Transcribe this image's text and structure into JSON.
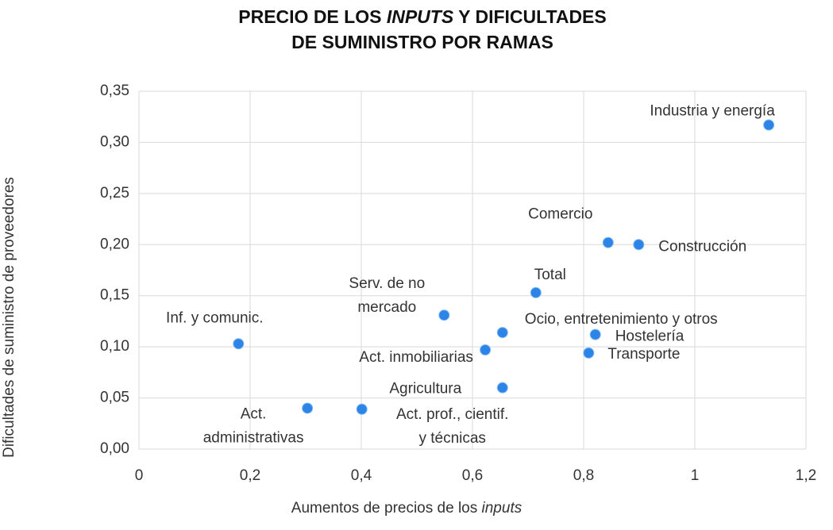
{
  "chart_data": {
    "type": "scatter",
    "title": {
      "line1": [
        "PRECIO DE LOS",
        "INPUTS",
        "Y DIFICULTADES"
      ],
      "line2": "DE SUMINISTRO POR RAMAS"
    },
    "x_label": [
      "Aumentos de precios de los",
      "inputs"
    ],
    "y_label": "Dificultades de suministro de proveedores",
    "color": "#2b84e6",
    "grid": true,
    "xlim": [
      0,
      1.2
    ],
    "xticks": [
      0,
      {
        "value": 0.2,
        "label": "0,2"
      },
      {
        "value": 0.4,
        "label": "0,4"
      },
      {
        "value": 0.6,
        "label": "0,6"
      },
      {
        "value": 0.8,
        "label": "0,8"
      },
      1,
      {
        "value": 1.2,
        "label": "1,2"
      }
    ],
    "ylim": [
      0,
      0.35
    ],
    "yticks": [
      {
        "value": 0,
        "label": "0,00"
      },
      {
        "value": 0.05,
        "label": "0,05"
      },
      {
        "value": 0.1,
        "label": "0,10"
      },
      {
        "value": 0.15,
        "label": "0,15"
      },
      {
        "value": 0.2,
        "label": "0,20"
      },
      {
        "value": 0.25,
        "label": "0,25"
      },
      {
        "value": 0.3,
        "label": "0,30"
      },
      {
        "value": 0.35,
        "label": "0,35"
      }
    ],
    "labels": [
      [
        "Industria y energía"
      ],
      [
        "Comercio"
      ],
      [
        "Construcción"
      ],
      [
        "Total"
      ],
      [
        "Serv. de no",
        "mercado"
      ],
      [
        "Ocio, entretenimiento y otros"
      ],
      [
        "Hostelería"
      ],
      [
        "Transporte"
      ],
      [
        "Act. inmobiliarias"
      ],
      [
        "Inf. y comunic."
      ],
      [
        "Agricultura"
      ],
      [
        "Act.",
        "administrativas"
      ],
      [
        "Act. prof., cientif.",
        "y técnicas"
      ]
    ],
    "x": [
      1.133,
      0.844,
      0.899,
      0.714,
      0.549,
      0.654,
      0.821,
      0.809,
      0.623,
      0.179,
      0.654,
      0.303,
      0.401
    ],
    "y": [
      0.317,
      0.202,
      0.2,
      0.153,
      0.131,
      0.114,
      0.112,
      0.094,
      0.097,
      0.103,
      0.06,
      0.04,
      0.039
    ]
  }
}
